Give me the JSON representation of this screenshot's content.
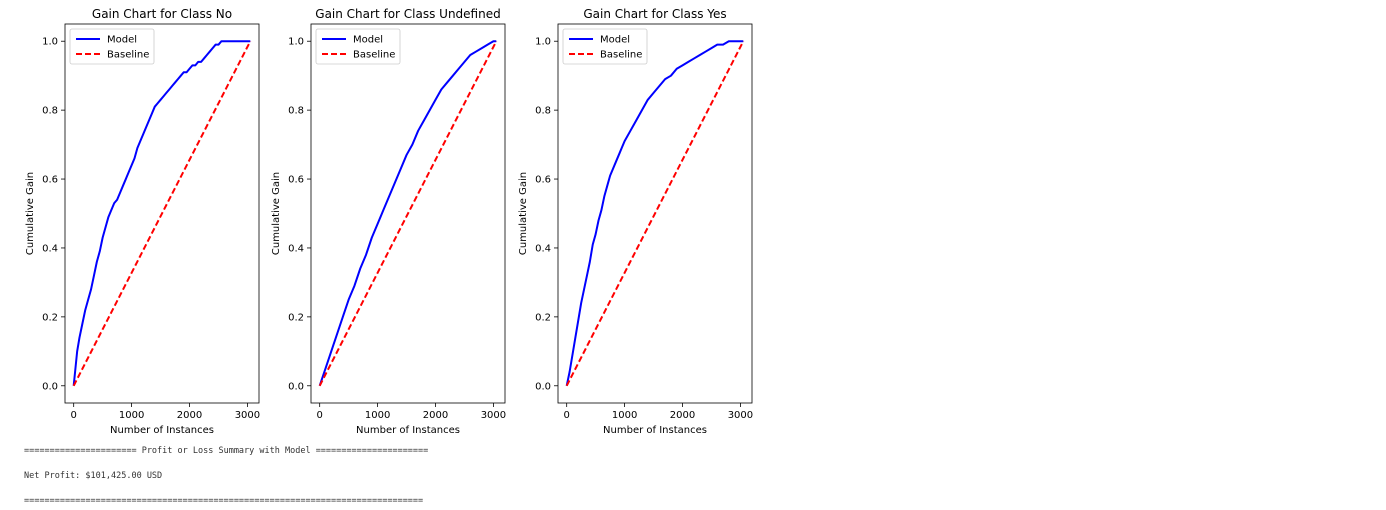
{
  "chart_data": [
    {
      "type": "line",
      "title": "Gain Chart for Class No",
      "xlabel": "Number of Instances",
      "ylabel": "Cumulative Gain",
      "xlim": [
        -150,
        3200
      ],
      "ylim": [
        -0.05,
        1.05
      ],
      "xticks": [
        0,
        1000,
        2000,
        3000
      ],
      "yticks": [
        0.0,
        0.2,
        0.4,
        0.6,
        0.8,
        1.0
      ],
      "xtick_labels": [
        "0",
        "1000",
        "2000",
        "3000"
      ],
      "ytick_labels": [
        "0.0",
        "0.2",
        "0.4",
        "0.6",
        "0.8",
        "1.0"
      ],
      "grid": false,
      "legend": "upper left",
      "series": [
        {
          "name": "Model",
          "color": "#0000ff",
          "style": "solid",
          "x": [
            0,
            30,
            60,
            100,
            150,
            200,
            250,
            300,
            350,
            400,
            450,
            500,
            550,
            600,
            650,
            700,
            750,
            800,
            850,
            900,
            950,
            1000,
            1050,
            1100,
            1150,
            1200,
            1250,
            1300,
            1350,
            1400,
            1450,
            1500,
            1550,
            1600,
            1650,
            1700,
            1750,
            1800,
            1850,
            1900,
            1950,
            2000,
            2050,
            2100,
            2150,
            2200,
            2250,
            2300,
            2350,
            2400,
            2450,
            2500,
            2550,
            2600,
            2650,
            2700,
            2750,
            2800,
            2850,
            2900,
            2950,
            3000,
            3050
          ],
          "y": [
            0.0,
            0.05,
            0.1,
            0.14,
            0.18,
            0.22,
            0.25,
            0.28,
            0.32,
            0.36,
            0.39,
            0.43,
            0.46,
            0.49,
            0.51,
            0.53,
            0.54,
            0.56,
            0.58,
            0.6,
            0.62,
            0.64,
            0.66,
            0.69,
            0.71,
            0.73,
            0.75,
            0.77,
            0.79,
            0.81,
            0.82,
            0.83,
            0.84,
            0.85,
            0.86,
            0.87,
            0.88,
            0.89,
            0.9,
            0.91,
            0.91,
            0.92,
            0.93,
            0.93,
            0.94,
            0.94,
            0.95,
            0.96,
            0.97,
            0.98,
            0.99,
            0.99,
            1.0,
            1.0,
            1.0,
            1.0,
            1.0,
            1.0,
            1.0,
            1.0,
            1.0,
            1.0,
            1.0
          ]
        },
        {
          "name": "Baseline",
          "color": "#ff0000",
          "style": "dashed",
          "x": [
            0,
            3050
          ],
          "y": [
            0.0,
            1.0
          ]
        }
      ]
    },
    {
      "type": "line",
      "title": "Gain Chart for Class Undefined",
      "xlabel": "Number of Instances",
      "ylabel": "Cumulative Gain",
      "xlim": [
        -150,
        3200
      ],
      "ylim": [
        -0.05,
        1.05
      ],
      "xticks": [
        0,
        1000,
        2000,
        3000
      ],
      "yticks": [
        0.0,
        0.2,
        0.4,
        0.6,
        0.8,
        1.0
      ],
      "xtick_labels": [
        "0",
        "1000",
        "2000",
        "3000"
      ],
      "ytick_labels": [
        "0.0",
        "0.2",
        "0.4",
        "0.6",
        "0.8",
        "1.0"
      ],
      "grid": false,
      "legend": "upper left",
      "series": [
        {
          "name": "Model",
          "color": "#0000ff",
          "style": "solid",
          "x": [
            0,
            100,
            200,
            300,
            400,
            500,
            600,
            700,
            800,
            900,
            1000,
            1100,
            1200,
            1300,
            1400,
            1500,
            1600,
            1700,
            1800,
            1900,
            2000,
            2100,
            2200,
            2300,
            2400,
            2500,
            2600,
            2700,
            2800,
            2900,
            3000,
            3050
          ],
          "y": [
            0.0,
            0.05,
            0.1,
            0.15,
            0.2,
            0.25,
            0.29,
            0.34,
            0.38,
            0.43,
            0.47,
            0.51,
            0.55,
            0.59,
            0.63,
            0.67,
            0.7,
            0.74,
            0.77,
            0.8,
            0.83,
            0.86,
            0.88,
            0.9,
            0.92,
            0.94,
            0.96,
            0.97,
            0.98,
            0.99,
            1.0,
            1.0
          ]
        },
        {
          "name": "Baseline",
          "color": "#ff0000",
          "style": "dashed",
          "x": [
            0,
            3050
          ],
          "y": [
            0.0,
            1.0
          ]
        }
      ]
    },
    {
      "type": "line",
      "title": "Gain Chart for Class Yes",
      "xlabel": "Number of Instances",
      "ylabel": "Cumulative Gain",
      "xlim": [
        -150,
        3200
      ],
      "ylim": [
        -0.05,
        1.05
      ],
      "xticks": [
        0,
        1000,
        2000,
        3000
      ],
      "yticks": [
        0.0,
        0.2,
        0.4,
        0.6,
        0.8,
        1.0
      ],
      "xtick_labels": [
        "0",
        "1000",
        "2000",
        "3000"
      ],
      "ytick_labels": [
        "0.0",
        "0.2",
        "0.4",
        "0.6",
        "0.8",
        "1.0"
      ],
      "grid": false,
      "legend": "upper left",
      "series": [
        {
          "name": "Model",
          "color": "#0000ff",
          "style": "solid",
          "x": [
            0,
            50,
            100,
            150,
            200,
            250,
            300,
            350,
            400,
            450,
            500,
            550,
            600,
            650,
            700,
            750,
            800,
            850,
            900,
            950,
            1000,
            1100,
            1200,
            1300,
            1400,
            1500,
            1600,
            1700,
            1800,
            1900,
            2000,
            2100,
            2200,
            2300,
            2400,
            2500,
            2600,
            2700,
            2800,
            2900,
            3000,
            3050
          ],
          "y": [
            0.0,
            0.04,
            0.09,
            0.14,
            0.19,
            0.24,
            0.28,
            0.32,
            0.36,
            0.41,
            0.44,
            0.48,
            0.51,
            0.55,
            0.58,
            0.61,
            0.63,
            0.65,
            0.67,
            0.69,
            0.71,
            0.74,
            0.77,
            0.8,
            0.83,
            0.85,
            0.87,
            0.89,
            0.9,
            0.92,
            0.93,
            0.94,
            0.95,
            0.96,
            0.97,
            0.98,
            0.99,
            0.99,
            1.0,
            1.0,
            1.0,
            1.0
          ]
        },
        {
          "name": "Baseline",
          "color": "#ff0000",
          "style": "dashed",
          "x": [
            0,
            3050
          ],
          "y": [
            0.0,
            1.0
          ]
        }
      ]
    }
  ],
  "console": {
    "summary_header": "====================== Profit or Loss Summary with Model ======================",
    "net_profit": "Net Profit: $101,425.00 USD",
    "separator": "=============================================================================="
  }
}
